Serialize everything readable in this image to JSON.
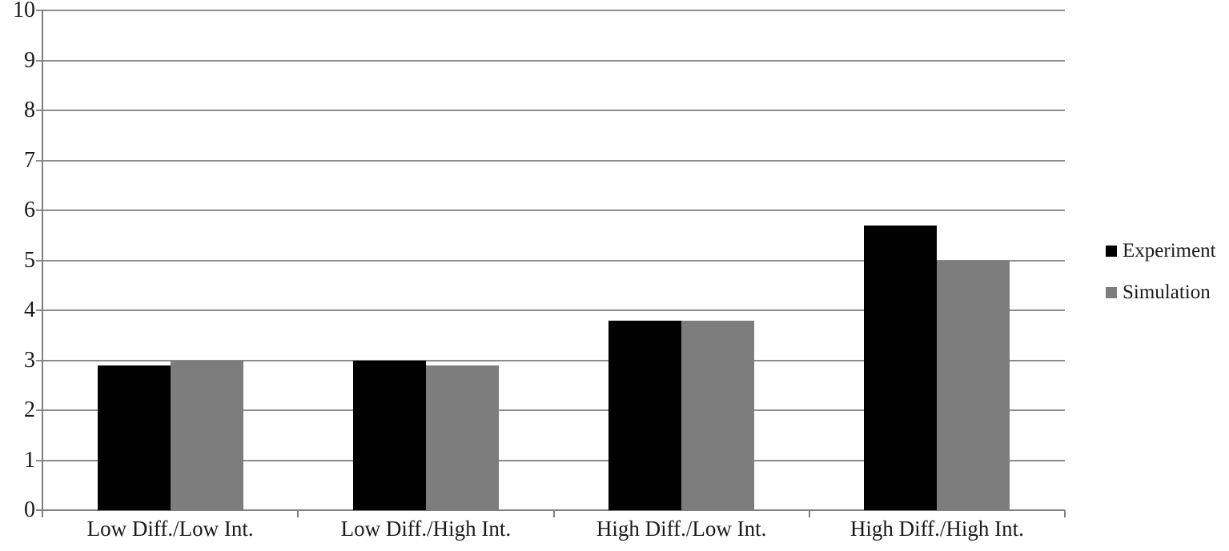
{
  "chart_data": {
    "type": "bar",
    "title": "",
    "xlabel": "",
    "ylabel": "",
    "categories": [
      "Low Diff./Low Int.",
      "Low Diff./High Int.",
      "High Diff./Low Int.",
      "High Diff./High Int."
    ],
    "series": [
      {
        "name": "Experiment",
        "color": "#000000",
        "values": [
          2.9,
          3.0,
          3.8,
          5.7
        ]
      },
      {
        "name": "Simulation",
        "color": "#7d7d7d",
        "values": [
          3.0,
          2.9,
          3.8,
          5.0
        ]
      }
    ],
    "ylim": [
      0,
      10
    ],
    "ytick_step": 1,
    "ytick_labels": [
      "0",
      "1",
      "2",
      "3",
      "4",
      "5",
      "6",
      "7",
      "8",
      "9",
      "10"
    ],
    "grid": true,
    "legend_position": "right",
    "legend": {
      "items": [
        {
          "label": "Experiment",
          "marker_color": "#000000"
        },
        {
          "label": "Simulation",
          "marker_color": "#7d7d7d"
        }
      ]
    },
    "colors": {
      "gridline": "#8c8c8c",
      "axis": "#7f7f7f",
      "text": "#1a1a1a",
      "background": "#ffffff"
    }
  }
}
